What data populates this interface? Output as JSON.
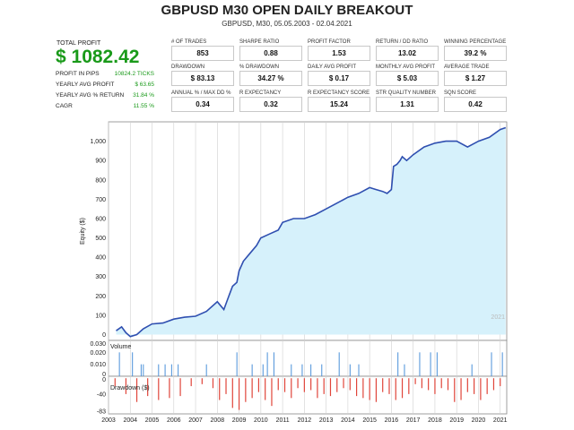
{
  "header": {
    "title": "GBPUSD M30 OPEN DAILY BREAKOUT",
    "subtitle": "GBPUSD, M30, 05.05.2003 - 02.04.2021"
  },
  "summary": {
    "total_profit_label": "TOTAL PROFIT",
    "total_profit_value": "$ 1082.42",
    "rows": [
      {
        "label": "PROFIT IN PIPS",
        "value": "10824.2 TICKS"
      },
      {
        "label": "YEARLY AVG PROFIT",
        "value": "$ 63.65"
      },
      {
        "label": "YEARLY AVG % RETURN",
        "value": "31.84 %"
      },
      {
        "label": "CAGR",
        "value": "11.55 %"
      }
    ]
  },
  "metrics": [
    {
      "label": "# OF TRADES",
      "value": "853"
    },
    {
      "label": "SHARPE RATIO",
      "value": "0.88"
    },
    {
      "label": "PROFIT FACTOR",
      "value": "1.53"
    },
    {
      "label": "RETURN / DD RATIO",
      "value": "13.02"
    },
    {
      "label": "WINNING PERCENTAGE",
      "value": "39.2 %"
    },
    {
      "label": "DRAWDOWN",
      "value": "$ 83.13"
    },
    {
      "label": "% DRAWDOWN",
      "value": "34.27 %"
    },
    {
      "label": "DAILY AVG PROFIT",
      "value": "$ 0.17"
    },
    {
      "label": "MONTHLY AVG PROFIT",
      "value": "$ 5.03"
    },
    {
      "label": "AVERAGE TRADE",
      "value": "$ 1.27"
    },
    {
      "label": "ANNUAL % / MAX DD %",
      "value": "0.34"
    },
    {
      "label": "R EXPECTANCY",
      "value": "0.32"
    },
    {
      "label": "R EXPECTANCY SCORE",
      "value": "15.24"
    },
    {
      "label": "STR QUALITY NUMBER",
      "value": "1.31"
    },
    {
      "label": "SQN SCORE",
      "value": "0.42"
    }
  ],
  "chart_data": {
    "type": "area",
    "xlabel": "",
    "x_tick_labels": [
      "2003",
      "2004",
      "2005",
      "2006",
      "2007",
      "2008",
      "2009",
      "2010",
      "2011",
      "2012",
      "2013",
      "2014",
      "2015",
      "2016",
      "2017",
      "2018",
      "2019",
      "2020",
      "2021"
    ],
    "watermark": "2021",
    "equity": {
      "ylabel": "Equity ($)",
      "y_ticks": [
        0,
        100,
        200,
        300,
        400,
        500,
        600,
        700,
        800,
        900,
        1000
      ],
      "y_tick_labels": [
        "0",
        "100",
        "200",
        "300",
        "400",
        "500",
        "600",
        "700",
        "800",
        "900",
        "1,000"
      ],
      "ylim": [
        -30,
        1100
      ],
      "x": [
        2003.35,
        2003.6,
        2003.8,
        2004.0,
        2004.3,
        2004.6,
        2005.0,
        2005.5,
        2006.0,
        2006.5,
        2007.0,
        2007.5,
        2008.0,
        2008.3,
        2008.5,
        2008.7,
        2008.9,
        2009.0,
        2009.2,
        2009.5,
        2009.8,
        2010.0,
        2010.4,
        2010.8,
        2011.0,
        2011.5,
        2012.0,
        2012.5,
        2013.0,
        2013.5,
        2014.0,
        2014.5,
        2015.0,
        2015.3,
        2015.6,
        2015.8,
        2016.0,
        2016.1,
        2016.25,
        2016.4,
        2016.5,
        2016.7,
        2017.0,
        2017.5,
        2018.0,
        2018.5,
        2019.0,
        2019.5,
        2020.0,
        2020.5,
        2021.0,
        2021.25
      ],
      "y": [
        20,
        40,
        10,
        -10,
        0,
        30,
        55,
        60,
        80,
        90,
        95,
        120,
        170,
        130,
        190,
        250,
        270,
        330,
        380,
        420,
        460,
        500,
        520,
        540,
        580,
        600,
        600,
        620,
        650,
        680,
        710,
        730,
        760,
        750,
        740,
        730,
        750,
        870,
        880,
        900,
        920,
        900,
        930,
        970,
        990,
        1000,
        1000,
        970,
        1000,
        1020,
        1060,
        1070
      ]
    },
    "volume": {
      "label": "Volume",
      "y_ticks": [
        0,
        0.01,
        0.02,
        0.03
      ],
      "y_tick_labels": [
        "0",
        "0.010",
        "0.020",
        "0.030"
      ],
      "ylim": [
        0,
        0.03
      ],
      "x": [
        2003.5,
        2004.1,
        2004.5,
        2004.6,
        2005.3,
        2005.6,
        2005.9,
        2006.2,
        2007.5,
        2008.9,
        2009.6,
        2010.1,
        2010.3,
        2010.6,
        2011.4,
        2011.9,
        2012.3,
        2012.8,
        2013.6,
        2014.1,
        2014.5,
        2016.3,
        2016.6,
        2017.3,
        2017.8,
        2018.1,
        2019.7,
        2020.6,
        2021.1
      ],
      "values": [
        0.02,
        0.02,
        0.01,
        0.01,
        0.01,
        0.01,
        0.01,
        0.01,
        0.01,
        0.02,
        0.01,
        0.01,
        0.02,
        0.02,
        0.01,
        0.01,
        0.01,
        0.01,
        0.02,
        0.01,
        0.01,
        0.02,
        0.01,
        0.02,
        0.02,
        0.02,
        0.01,
        0.02,
        0.02
      ]
    },
    "drawdown": {
      "label": "Drawdown ($)",
      "y_ticks": [
        -83,
        -40,
        0
      ],
      "y_tick_labels": [
        "-83",
        "-40",
        "0"
      ],
      "ylim": [
        -90,
        5
      ],
      "x": [
        2003.3,
        2003.8,
        2004.3,
        2004.8,
        2005.3,
        2005.8,
        2006.3,
        2006.8,
        2007.3,
        2007.8,
        2008.1,
        2008.4,
        2008.7,
        2009.0,
        2009.3,
        2009.6,
        2009.9,
        2010.2,
        2010.5,
        2010.8,
        2011.1,
        2011.4,
        2011.7,
        2012.0,
        2012.3,
        2012.6,
        2012.9,
        2013.2,
        2013.5,
        2013.8,
        2014.1,
        2014.4,
        2014.7,
        2015.0,
        2015.3,
        2015.6,
        2015.9,
        2016.2,
        2016.5,
        2016.8,
        2017.1,
        2017.4,
        2017.7,
        2018.0,
        2018.3,
        2018.6,
        2018.9,
        2019.2,
        2019.5,
        2019.8,
        2020.1,
        2020.4,
        2020.7,
        2021.0
      ],
      "values": [
        -20,
        -40,
        -60,
        -45,
        -55,
        -50,
        -45,
        -20,
        -15,
        -25,
        -55,
        -40,
        -75,
        -80,
        -60,
        -50,
        -35,
        -55,
        -70,
        -30,
        -35,
        -50,
        -25,
        -35,
        -30,
        -50,
        -40,
        -45,
        -35,
        -25,
        -30,
        -45,
        -50,
        -55,
        -60,
        -35,
        -40,
        -55,
        -50,
        -40,
        -15,
        -25,
        -30,
        -40,
        -25,
        -30,
        -60,
        -55,
        -35,
        -40,
        -55,
        -40,
        -30,
        -20
      ]
    }
  }
}
